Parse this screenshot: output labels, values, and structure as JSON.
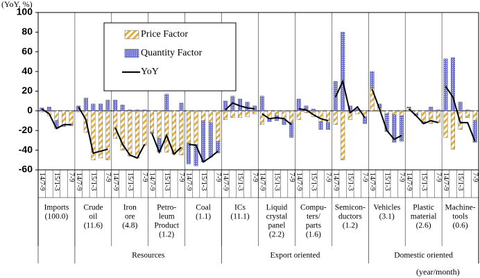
{
  "chart_data": {
    "type": "bar",
    "y_label": "(YoY, %)",
    "x_label": "(year/month)",
    "ylim": [
      -60,
      100
    ],
    "yticks": [
      -60,
      -40,
      -20,
      0,
      20,
      40,
      60,
      80,
      100
    ],
    "categories": [
      "14/7-9",
      null,
      "15/1-3",
      null,
      "7-9"
    ],
    "series": [
      {
        "name": "Price Factor",
        "color": "#e0b040",
        "values": [
          [
            -1,
            -5,
            -10,
            -14,
            -14
          ],
          [
            -1,
            -22,
            -50,
            -48,
            -50
          ],
          [
            -28,
            -40,
            -46,
            -48,
            -35
          ],
          [
            -22,
            -28,
            -42,
            -43,
            -45
          ],
          [
            -33,
            -34,
            -10,
            -12,
            -31
          ],
          [
            -9,
            -7,
            -7,
            -6,
            -3
          ],
          [
            -14,
            -8,
            -5,
            -8,
            -12
          ],
          [
            -9,
            -2,
            -6,
            -11,
            -12
          ],
          [
            -14,
            -50,
            -9,
            -3,
            -6
          ],
          [
            23,
            3,
            -3,
            -4,
            -5
          ],
          [
            3,
            -3,
            -11,
            -13,
            -12
          ],
          [
            -27,
            -39,
            -19,
            -7,
            -10
          ]
        ]
      },
      {
        "name": "Quantity Factor",
        "color": "#6f74d6",
        "values": [
          [
            3,
            4,
            -8,
            -2,
            -1
          ],
          [
            5,
            13,
            7,
            7,
            11
          ],
          [
            11,
            6,
            1,
            1,
            1
          ],
          [
            -1,
            -14,
            17,
            -1,
            8
          ],
          [
            -21,
            -22,
            -42,
            -35,
            -12
          ],
          [
            10,
            15,
            12,
            9,
            5
          ],
          [
            15,
            -3,
            -5,
            -6,
            -15
          ],
          [
            12,
            5,
            2,
            -8,
            -7
          ],
          [
            30,
            80,
            5,
            2,
            -7
          ],
          [
            17,
            4,
            -18,
            -28,
            -26
          ],
          [
            1,
            -2,
            -2,
            4,
            1
          ],
          [
            53,
            54,
            9,
            1,
            -22
          ]
        ]
      },
      {
        "name": "YoY",
        "color": "#000000",
        "values": [
          [
            2,
            -3,
            -18,
            -14,
            -14
          ],
          [
            4,
            -9,
            -43,
            -41,
            -39
          ],
          [
            -17,
            -34,
            -45,
            -48,
            -34
          ],
          [
            -23,
            -42,
            -25,
            -44,
            -37
          ],
          [
            -34,
            -35,
            -52,
            -47,
            -41
          ],
          [
            1,
            8,
            5,
            3,
            2
          ],
          [
            -3,
            -8,
            -7,
            -8,
            -14
          ],
          [
            2,
            1,
            -4,
            -8,
            -10
          ],
          [
            14,
            30,
            -2,
            4,
            -7
          ],
          [
            22,
            2,
            -20,
            -29,
            -25
          ],
          [
            2,
            -5,
            -13,
            -10,
            -12
          ],
          [
            25,
            14,
            -12,
            -12,
            -31
          ]
        ]
      }
    ],
    "groups": [
      {
        "label": [
          "Imports",
          "(100.0)"
        ],
        "sector": null
      },
      {
        "label": [
          "Crude",
          "oil",
          "(11.6)"
        ],
        "sector": "Resources"
      },
      {
        "label": [
          "Iron",
          "ore",
          "(4.8)"
        ],
        "sector": "Resources"
      },
      {
        "label": [
          "Petro-",
          "leum",
          "Product",
          "(1.2)"
        ],
        "sector": "Resources"
      },
      {
        "label": [
          "Coal",
          "(1.1)"
        ],
        "sector": "Resources"
      },
      {
        "label": [
          "ICs",
          "(11.1)"
        ],
        "sector": "Export oriented"
      },
      {
        "label": [
          "Liquid",
          "crystal",
          "panel",
          "(2.2)"
        ],
        "sector": "Export oriented"
      },
      {
        "label": [
          "Compu-",
          "ters/",
          "parts",
          "(1.6)"
        ],
        "sector": "Export oriented"
      },
      {
        "label": [
          "Semicon-",
          "ductors",
          "(1.2)"
        ],
        "sector": "Export oriented"
      },
      {
        "label": [
          "Vehicles",
          "(3.1)"
        ],
        "sector": "Domestic oriented"
      },
      {
        "label": [
          "Plastic",
          "material",
          "(2.6)"
        ],
        "sector": "Domestic oriented"
      },
      {
        "label": [
          "Machine-",
          "tools",
          "(0.6)"
        ],
        "sector": "Domestic oriented"
      }
    ]
  }
}
